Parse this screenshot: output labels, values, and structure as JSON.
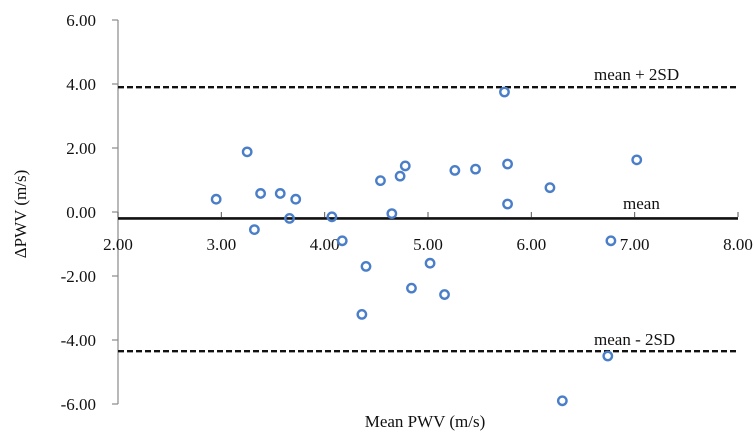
{
  "chart_data": {
    "type": "scatter",
    "title": "",
    "xlabel": "Mean PWV (m/s)",
    "ylabel": "ΔPWV (m/s)",
    "xlim": [
      2.0,
      8.0
    ],
    "ylim": [
      -6.0,
      6.0
    ],
    "x_tick_labels": [
      "2.00",
      "3.00",
      "4.00",
      "5.00",
      "6.00",
      "7.00",
      "8.00"
    ],
    "y_tick_labels": [
      "6.00",
      "4.00",
      "2.00",
      "0.00",
      "-2.00",
      "-4.00",
      "-6.00"
    ],
    "x_ticks": [
      2,
      3,
      4,
      5,
      6,
      7,
      8
    ],
    "y_ticks": [
      6,
      4,
      2,
      0,
      -2,
      -4,
      -6
    ],
    "grid": false,
    "legend": "none",
    "marker_color": "#4a7ec8",
    "reference_lines": [
      {
        "label": "mean + 2SD",
        "y": 3.9,
        "style": "dashed"
      },
      {
        "label": "mean",
        "y": -0.2,
        "style": "solid"
      },
      {
        "label": "mean - 2SD",
        "y": -4.35,
        "style": "dashed"
      }
    ],
    "points": [
      {
        "x": 2.95,
        "y": 0.4
      },
      {
        "x": 3.25,
        "y": 1.88
      },
      {
        "x": 3.32,
        "y": -0.55
      },
      {
        "x": 3.38,
        "y": 0.58
      },
      {
        "x": 3.57,
        "y": 0.58
      },
      {
        "x": 3.66,
        "y": -0.2
      },
      {
        "x": 3.72,
        "y": 0.4
      },
      {
        "x": 4.07,
        "y": -0.15
      },
      {
        "x": 4.17,
        "y": -0.9
      },
      {
        "x": 4.36,
        "y": -3.2
      },
      {
        "x": 4.4,
        "y": -1.7
      },
      {
        "x": 4.54,
        "y": 0.98
      },
      {
        "x": 4.65,
        "y": -0.05
      },
      {
        "x": 4.73,
        "y": 1.12
      },
      {
        "x": 4.78,
        "y": 1.44
      },
      {
        "x": 4.84,
        "y": -2.38
      },
      {
        "x": 5.02,
        "y": -1.6
      },
      {
        "x": 5.16,
        "y": -2.58
      },
      {
        "x": 5.26,
        "y": 1.3
      },
      {
        "x": 5.46,
        "y": 1.34
      },
      {
        "x": 5.74,
        "y": 3.75
      },
      {
        "x": 5.77,
        "y": 1.5
      },
      {
        "x": 5.77,
        "y": 0.25
      },
      {
        "x": 6.18,
        "y": 0.76
      },
      {
        "x": 6.3,
        "y": -5.9
      },
      {
        "x": 6.74,
        "y": -4.5
      },
      {
        "x": 6.77,
        "y": -0.9
      },
      {
        "x": 7.02,
        "y": 1.63
      }
    ]
  }
}
